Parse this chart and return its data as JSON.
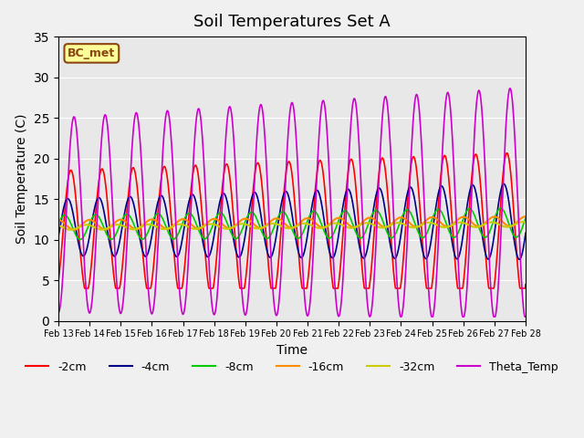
{
  "title": "Soil Temperatures Set A",
  "xlabel": "Time",
  "ylabel": "Soil Temperature (C)",
  "ylim": [
    0,
    35
  ],
  "xlim": [
    0,
    15
  ],
  "x_tick_labels": [
    "Feb 13",
    "Feb 14",
    "Feb 15",
    "Feb 16",
    "Feb 17",
    "Feb 18",
    "Feb 19",
    "Feb 20",
    "Feb 21",
    "Feb 22",
    "Feb 23",
    "Feb 24",
    "Feb 25",
    "Feb 26",
    "Feb 27",
    "Feb 28"
  ],
  "colors": {
    "-2cm": "#ff0000",
    "-4cm": "#00008b",
    "-8cm": "#00cc00",
    "-16cm": "#ff8c00",
    "-32cm": "#cccc00",
    "Theta_Temp": "#cc00cc"
  },
  "legend_label": "BC_met",
  "background_color": "#e8e8e8",
  "plot_bg_color": "#e8e8e8",
  "grid_color": "#ffffff",
  "title_fontsize": 13,
  "axis_fontsize": 10,
  "legend_fontsize": 9
}
